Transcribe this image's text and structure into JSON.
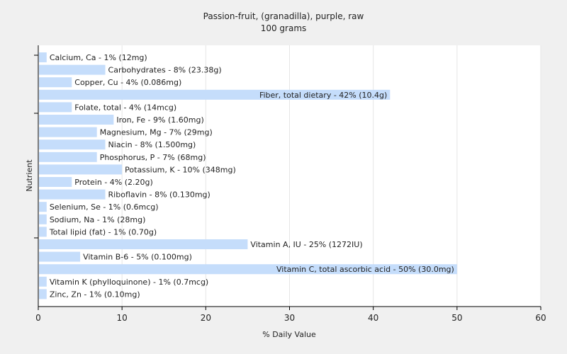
{
  "chart_data": {
    "type": "bar",
    "orientation": "horizontal",
    "title": "Passion-fruit, (granadilla), purple, raw",
    "subtitle": "100 grams",
    "xlabel": "% Daily Value",
    "ylabel": "Nutrient",
    "xlim": [
      0,
      60
    ],
    "xticks": [
      0,
      10,
      20,
      30,
      40,
      50,
      60
    ],
    "grid": true,
    "bar_color": "#c5ddfb",
    "categories": [
      "Calcium, Ca - 1% (12mg)",
      "Carbohydrates - 8% (23.38g)",
      "Copper, Cu - 4% (0.086mg)",
      "Fiber, total dietary - 42% (10.4g)",
      "Folate, total - 4% (14mcg)",
      "Iron, Fe - 9% (1.60mg)",
      "Magnesium, Mg - 7% (29mg)",
      "Niacin - 8% (1.500mg)",
      "Phosphorus, P - 7% (68mg)",
      "Potassium, K - 10% (348mg)",
      "Protein - 4% (2.20g)",
      "Riboflavin - 8% (0.130mg)",
      "Selenium, Se - 1% (0.6mcg)",
      "Sodium, Na - 1% (28mg)",
      "Total lipid (fat) - 1% (0.70g)",
      "Vitamin A, IU - 25% (1272IU)",
      "Vitamin B-6 - 5% (0.100mg)",
      "Vitamin C, total ascorbic acid - 50% (30.0mg)",
      "Vitamin K (phylloquinone) - 1% (0.7mcg)",
      "Zinc, Zn - 1% (0.10mg)"
    ],
    "values": [
      1,
      8,
      4,
      42,
      4,
      9,
      7,
      8,
      7,
      10,
      4,
      8,
      1,
      1,
      1,
      25,
      5,
      50,
      1,
      1
    ]
  }
}
